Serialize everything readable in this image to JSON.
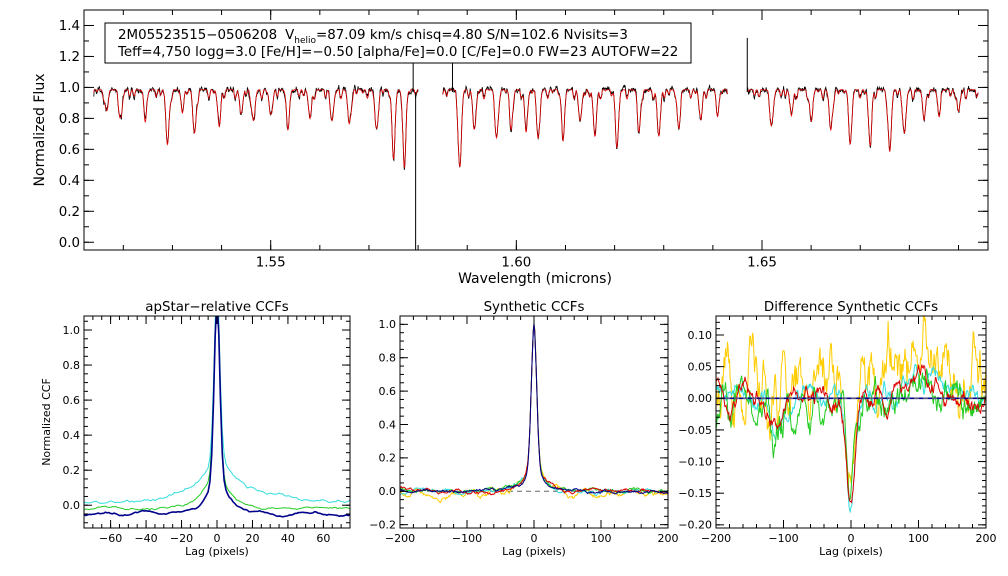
{
  "chart_data": [
    {
      "type": "line",
      "id": "spectrum",
      "title": "",
      "xlabel": "Wavelength (microns)",
      "ylabel": "Normalized Flux",
      "xlim": [
        1.512,
        1.696
      ],
      "ylim": [
        -0.05,
        1.5
      ],
      "xticks": [
        1.55,
        1.6,
        1.65
      ],
      "xtick_labels": [
        "1.55",
        "1.60",
        "1.65"
      ],
      "yticks": [
        0.0,
        0.2,
        0.4,
        0.6,
        0.8,
        1.0,
        1.2,
        1.4
      ],
      "ytick_labels": [
        "0.0",
        "0.2",
        "0.4",
        "0.6",
        "0.8",
        "1.0",
        "1.2",
        "1.4"
      ],
      "annotation_line1_name": "2M05523515−0506208",
      "annotation_vhelio_prefix": "V",
      "annotation_vhelio_sub": "helio",
      "annotation_line1_rest": "=87.09 km/s  chisq=4.80  S/N=102.6  Nvisits=3",
      "annotation_line2": "Teff=4,750 logg=3.0 [Fe/H]=−0.50 [alpha/Fe]=0.0 [C/Fe]=0.0 FW=23 AUTOFW=22",
      "chips": [
        [
          1.514,
          1.58
        ],
        [
          1.585,
          1.643
        ],
        [
          1.647,
          1.694
        ]
      ],
      "absorption_lines": [
        {
          "x": 1.5165,
          "depth": 0.12
        },
        {
          "x": 1.5195,
          "depth": 0.18
        },
        {
          "x": 1.5245,
          "depth": 0.15
        },
        {
          "x": 1.529,
          "depth": 0.35
        },
        {
          "x": 1.532,
          "depth": 0.1
        },
        {
          "x": 1.5345,
          "depth": 0.28
        },
        {
          "x": 1.5395,
          "depth": 0.22
        },
        {
          "x": 1.544,
          "depth": 0.15
        },
        {
          "x": 1.5465,
          "depth": 0.2
        },
        {
          "x": 1.55,
          "depth": 0.16
        },
        {
          "x": 1.5535,
          "depth": 0.2
        },
        {
          "x": 1.558,
          "depth": 0.18
        },
        {
          "x": 1.5625,
          "depth": 0.2
        },
        {
          "x": 1.566,
          "depth": 0.22
        },
        {
          "x": 1.5715,
          "depth": 0.25
        },
        {
          "x": 1.575,
          "depth": 0.4
        },
        {
          "x": 1.5772,
          "depth": 0.45
        },
        {
          "x": 1.5885,
          "depth": 0.5
        },
        {
          "x": 1.5915,
          "depth": 0.25
        },
        {
          "x": 1.596,
          "depth": 0.3
        },
        {
          "x": 1.599,
          "depth": 0.22
        },
        {
          "x": 1.602,
          "depth": 0.25
        },
        {
          "x": 1.6045,
          "depth": 0.3
        },
        {
          "x": 1.6095,
          "depth": 0.28
        },
        {
          "x": 1.613,
          "depth": 0.2
        },
        {
          "x": 1.616,
          "depth": 0.3
        },
        {
          "x": 1.6205,
          "depth": 0.35
        },
        {
          "x": 1.625,
          "depth": 0.25
        },
        {
          "x": 1.629,
          "depth": 0.3
        },
        {
          "x": 1.633,
          "depth": 0.22
        },
        {
          "x": 1.6375,
          "depth": 0.18
        },
        {
          "x": 1.641,
          "depth": 0.12
        },
        {
          "x": 1.652,
          "depth": 0.22
        },
        {
          "x": 1.656,
          "depth": 0.16
        },
        {
          "x": 1.66,
          "depth": 0.18
        },
        {
          "x": 1.664,
          "depth": 0.26
        },
        {
          "x": 1.668,
          "depth": 0.32
        },
        {
          "x": 1.672,
          "depth": 0.35
        },
        {
          "x": 1.676,
          "depth": 0.4
        },
        {
          "x": 1.679,
          "depth": 0.28
        },
        {
          "x": 1.683,
          "depth": 0.16
        },
        {
          "x": 1.686,
          "depth": 0.12
        },
        {
          "x": 1.69,
          "depth": 0.14
        }
      ],
      "spikes": [
        {
          "x": 1.5795,
          "y": -0.05
        },
        {
          "x": 1.579,
          "y": 1.25
        },
        {
          "x": 1.587,
          "y": 1.2
        },
        {
          "x": 1.647,
          "y": 1.32
        }
      ],
      "series": [
        {
          "name": "observed",
          "color": "#000000"
        },
        {
          "name": "model",
          "color": "#e00000"
        }
      ]
    },
    {
      "type": "line",
      "id": "apstar_ccf",
      "title": "apStar−relative CCFs",
      "xlabel": "Lag (pixels)",
      "ylabel": "Normalized CCF",
      "xlim": [
        -75,
        75
      ],
      "ylim": [
        -0.13,
        1.08
      ],
      "xticks": [
        -60,
        -40,
        -20,
        0,
        20,
        40,
        60
      ],
      "xtick_labels": [
        "−60",
        "−40",
        "−20",
        "0",
        "20",
        "40",
        "60"
      ],
      "yticks": [
        0.0,
        0.2,
        0.4,
        0.6,
        0.8,
        1.0
      ],
      "ytick_labels": [
        "0.0",
        "0.2",
        "0.4",
        "0.6",
        "0.8",
        "1.0"
      ],
      "series": [
        {
          "name": "navy",
          "color": "#00008b",
          "width": 6.0,
          "base": -0.05
        },
        {
          "name": "green",
          "color": "#22cc22",
          "width": 8.0,
          "base": -0.02
        },
        {
          "name": "cyan",
          "color": "#33dddd",
          "width": 14.0,
          "base": 0.02
        }
      ]
    },
    {
      "type": "line",
      "id": "synthetic_ccf",
      "title": "Synthetic CCFs",
      "xlabel": "Lag (pixels)",
      "ylabel": "",
      "xlim": [
        -200,
        200
      ],
      "ylim": [
        -0.22,
        1.05
      ],
      "xticks": [
        -200,
        -100,
        0,
        100,
        200
      ],
      "xtick_labels": [
        "−200",
        "−100",
        "0",
        "100",
        "200"
      ],
      "yticks": [
        -0.2,
        0.0,
        0.2,
        0.4,
        0.6,
        0.8,
        1.0
      ],
      "ytick_labels": [
        "−0.2",
        "0.0",
        "0.2",
        "0.4",
        "0.6",
        "0.8",
        "1.0"
      ],
      "zero_line": true,
      "series": [
        {
          "name": "navy",
          "color": "#00008b"
        },
        {
          "name": "green",
          "color": "#22cc22"
        },
        {
          "name": "cyan",
          "color": "#33dddd"
        },
        {
          "name": "gold",
          "color": "#ffcc00"
        },
        {
          "name": "red",
          "color": "#dd0000"
        }
      ]
    },
    {
      "type": "line",
      "id": "difference_ccf",
      "title": "Difference Synthetic CCFs",
      "xlabel": "Lag (pixels)",
      "ylabel": "",
      "xlim": [
        -200,
        200
      ],
      "ylim": [
        -0.205,
        0.13
      ],
      "xticks": [
        -200,
        -100,
        0,
        100,
        200
      ],
      "xtick_labels": [
        "−200",
        "−100",
        "0",
        "100",
        "200"
      ],
      "yticks": [
        -0.2,
        -0.15,
        -0.1,
        -0.05,
        0.0,
        0.05,
        0.1
      ],
      "ytick_labels": [
        "−0.20",
        "−0.15",
        "−0.10",
        "−0.05",
        "0.00",
        "0.05",
        "0.10"
      ],
      "zero_line": true,
      "series": [
        {
          "name": "navy",
          "color": "#00008b"
        },
        {
          "name": "green",
          "color": "#22cc22"
        },
        {
          "name": "cyan",
          "color": "#33dddd"
        },
        {
          "name": "gold",
          "color": "#ffcc00"
        },
        {
          "name": "red",
          "color": "#dd0000"
        }
      ]
    }
  ]
}
